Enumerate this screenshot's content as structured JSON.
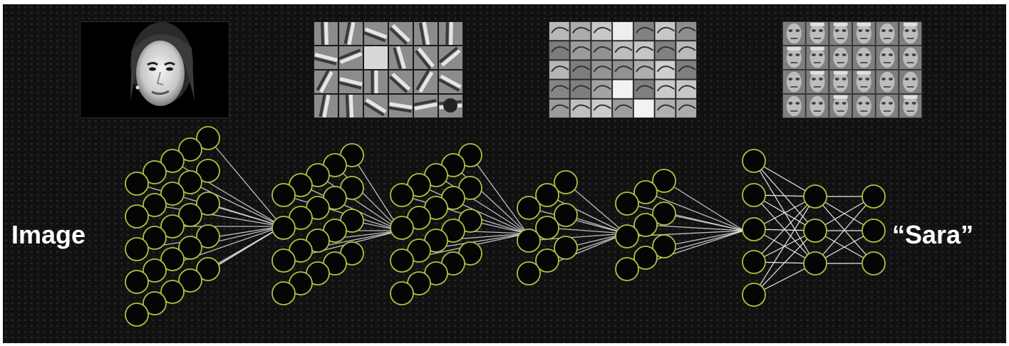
{
  "input_label": "Image",
  "output_label": "“Sara”",
  "colors": {
    "background": "#111111",
    "neuron_stroke": "#a9c23f",
    "neuron_fill": "#050505",
    "connection": "#e8e8e8",
    "label": "#ffffff"
  },
  "thumbnails": [
    {
      "name": "input-face-photo",
      "content": "face-photo-icon"
    },
    {
      "name": "edge-feature-grid",
      "content": "edge-filters-icon"
    },
    {
      "name": "part-feature-grid",
      "content": "face-parts-icon"
    },
    {
      "name": "face-feature-grid",
      "content": "face-templates-icon"
    }
  ]
}
